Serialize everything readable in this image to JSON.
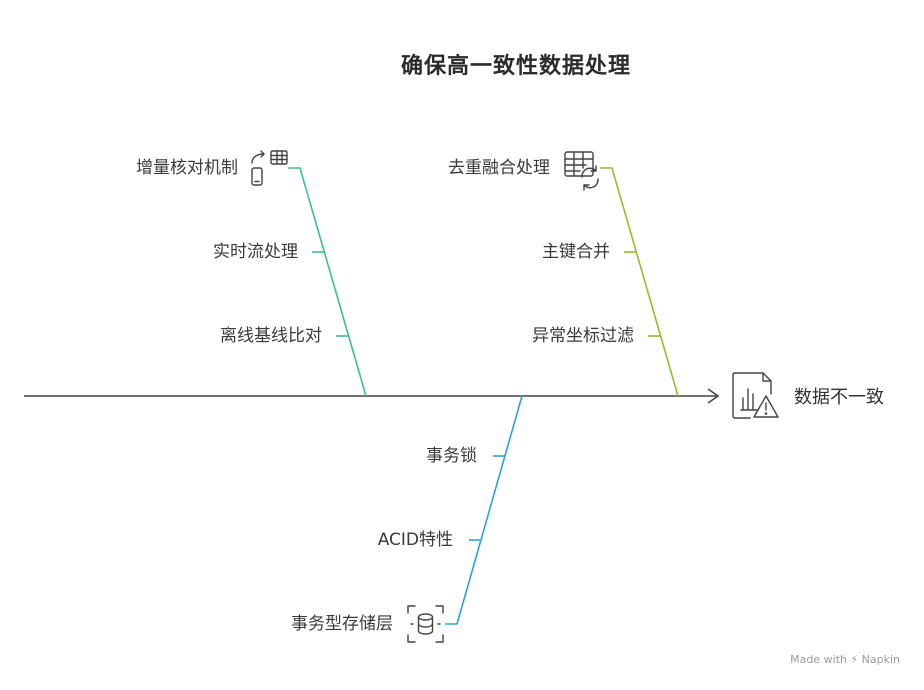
{
  "title": "确保高一致性数据处理",
  "effect": "数据不一致",
  "branches": [
    {
      "color": "#3cc08a",
      "causes": [
        "增量核对机制",
        "实时流处理",
        "离线基线比对"
      ],
      "icon": "sync-table-icon"
    },
    {
      "color": "#8fbf2e",
      "causes": [
        "去重融合处理",
        "主键合并",
        "异常坐标过滤"
      ],
      "icon": "table-refresh-icon"
    },
    {
      "color": "#2aa3d8",
      "causes": [
        "事务锁",
        "ACID特性",
        "事务型存储层"
      ],
      "icon": "database-focus-icon"
    }
  ],
  "brand": "Made with ⚡ Napkin"
}
